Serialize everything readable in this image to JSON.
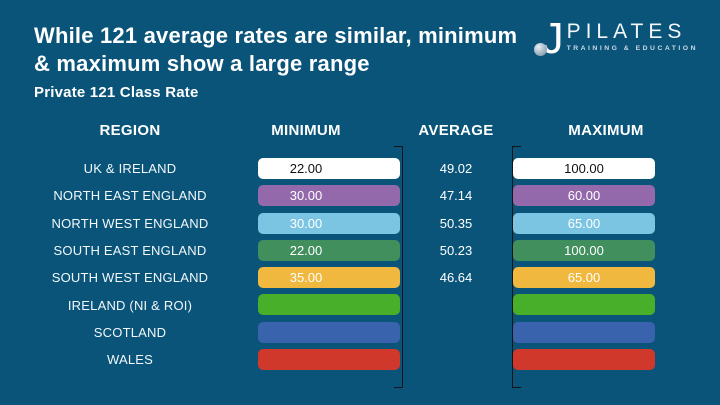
{
  "slide": {
    "title_line1": "While 121 average rates are similar, minimum",
    "title_line2": "& maximum show a large range",
    "subtitle": "Private 121 Class Rate"
  },
  "logo": {
    "monogram": "J",
    "brand": "PILATES",
    "tagline": "TRAINING & EDUCATION",
    "sphere_icon": "sphere-icon"
  },
  "colors": {
    "background": "#0A547A",
    "axis_line": "#141414"
  },
  "table": {
    "headers": {
      "region": "REGION",
      "minimum": "MINIMUM",
      "average": "AVERAGE",
      "maximum": "MAXIMUM"
    },
    "rows": [
      {
        "region": "UK & IRELAND",
        "min": "22.00",
        "avg": "49.02",
        "max": "100.00",
        "bar_color": "#FFFFFF",
        "value_color": "#111111"
      },
      {
        "region": "NORTH EAST ENGLAND",
        "min": "30.00",
        "avg": "47.14",
        "max": "60.00",
        "bar_color": "#9469AC",
        "value_color": "#FFFFFF"
      },
      {
        "region": "NORTH WEST ENGLAND",
        "min": "30.00",
        "avg": "50.35",
        "max": "65.00",
        "bar_color": "#7CC5E2",
        "value_color": "#FFFFFF"
      },
      {
        "region": "SOUTH EAST ENGLAND",
        "min": "22.00",
        "avg": "50.23",
        "max": "100.00",
        "bar_color": "#418F5D",
        "value_color": "#FFFFFF"
      },
      {
        "region": "SOUTH WEST ENGLAND",
        "min": "35.00",
        "avg": "46.64",
        "max": "65.00",
        "bar_color": "#F0B83F",
        "value_color": "#FFFFFF"
      },
      {
        "region": "IRELAND (NI & ROI)",
        "min": "",
        "avg": "",
        "max": "",
        "bar_color": "#47AF2A",
        "value_color": "#FFFFFF"
      },
      {
        "region": "SCOTLAND",
        "min": "",
        "avg": "",
        "max": "",
        "bar_color": "#3A63AE",
        "value_color": "#FFFFFF"
      },
      {
        "region": "WALES",
        "min": "",
        "avg": "",
        "max": "",
        "bar_color": "#CF382B",
        "value_color": "#FFFFFF"
      }
    ]
  },
  "chart_data": {
    "type": "table",
    "title": "Private 121 Class Rate",
    "categories": [
      "UK & IRELAND",
      "NORTH EAST ENGLAND",
      "NORTH WEST ENGLAND",
      "SOUTH EAST ENGLAND",
      "SOUTH WEST ENGLAND",
      "IRELAND (NI & ROI)",
      "SCOTLAND",
      "WALES"
    ],
    "series": [
      {
        "name": "MINIMUM",
        "values": [
          22.0,
          30.0,
          30.0,
          22.0,
          35.0,
          null,
          null,
          null
        ]
      },
      {
        "name": "AVERAGE",
        "values": [
          49.02,
          47.14,
          50.35,
          50.23,
          46.64,
          null,
          null,
          null
        ]
      },
      {
        "name": "MAXIMUM",
        "values": [
          100.0,
          60.0,
          65.0,
          100.0,
          65.0,
          null,
          null,
          null
        ]
      }
    ],
    "legend_position": "none",
    "grid": false
  }
}
